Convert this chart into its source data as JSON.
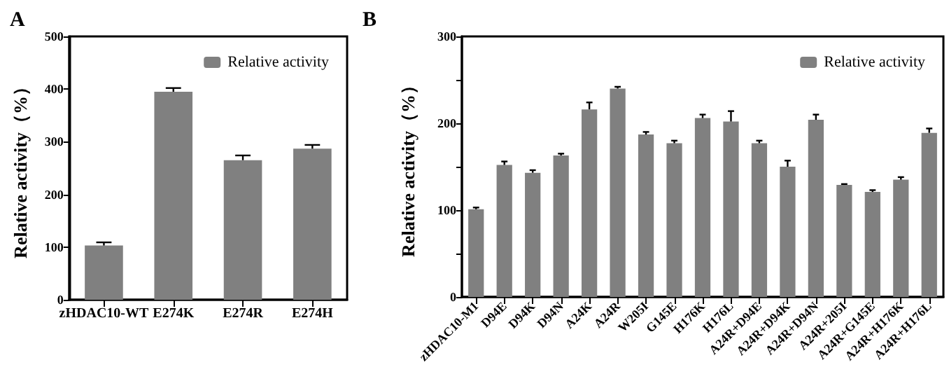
{
  "chart_data": [
    {
      "type": "bar",
      "title": "A",
      "ylabel": "Relative activity（%）",
      "categories": [
        "zHDAC10-WT",
        "E274K",
        "E274R",
        "E274H"
      ],
      "series": [
        {
          "name": "Relative activity",
          "color": "#808080",
          "values": [
            103,
            395,
            265,
            287
          ],
          "errors": [
            6,
            7,
            9,
            7
          ]
        }
      ],
      "ylim": [
        0,
        500
      ],
      "yticks": [
        0,
        100,
        200,
        300,
        400,
        500
      ],
      "grid": false,
      "legend": "top right"
    },
    {
      "type": "bar",
      "title": "B",
      "ylabel": "Relative activity（%）",
      "categories": [
        "zHDAC10-M1",
        "D94E",
        "D94K",
        "D94N",
        "A24K",
        "A24R",
        "W205I",
        "G145E",
        "H176K",
        "H176L",
        "A24R+D94E",
        "A24R+D94K",
        "A24R+D94N",
        "A24R+205I",
        "A24R+G145E",
        "A24R+H176K",
        "A24R+H176L"
      ],
      "series": [
        {
          "name": "Relative activity",
          "color": "#808080",
          "values": [
            101,
            152,
            143,
            163,
            216,
            240,
            187,
            177,
            206,
            202,
            177,
            150,
            204,
            129,
            121,
            135,
            189
          ],
          "errors": [
            2,
            4,
            3,
            2,
            8,
            2,
            3,
            3,
            4,
            12,
            3,
            7,
            6,
            1,
            2,
            3,
            5
          ]
        }
      ],
      "ylim": [
        0,
        300
      ],
      "yticks": [
        0,
        {
          "value": 50,
          "label": null
        },
        100,
        {
          "value": 150,
          "label": null
        },
        200,
        {
          "value": 250,
          "label": null
        },
        300
      ],
      "grid": false,
      "legend": "top right"
    }
  ]
}
